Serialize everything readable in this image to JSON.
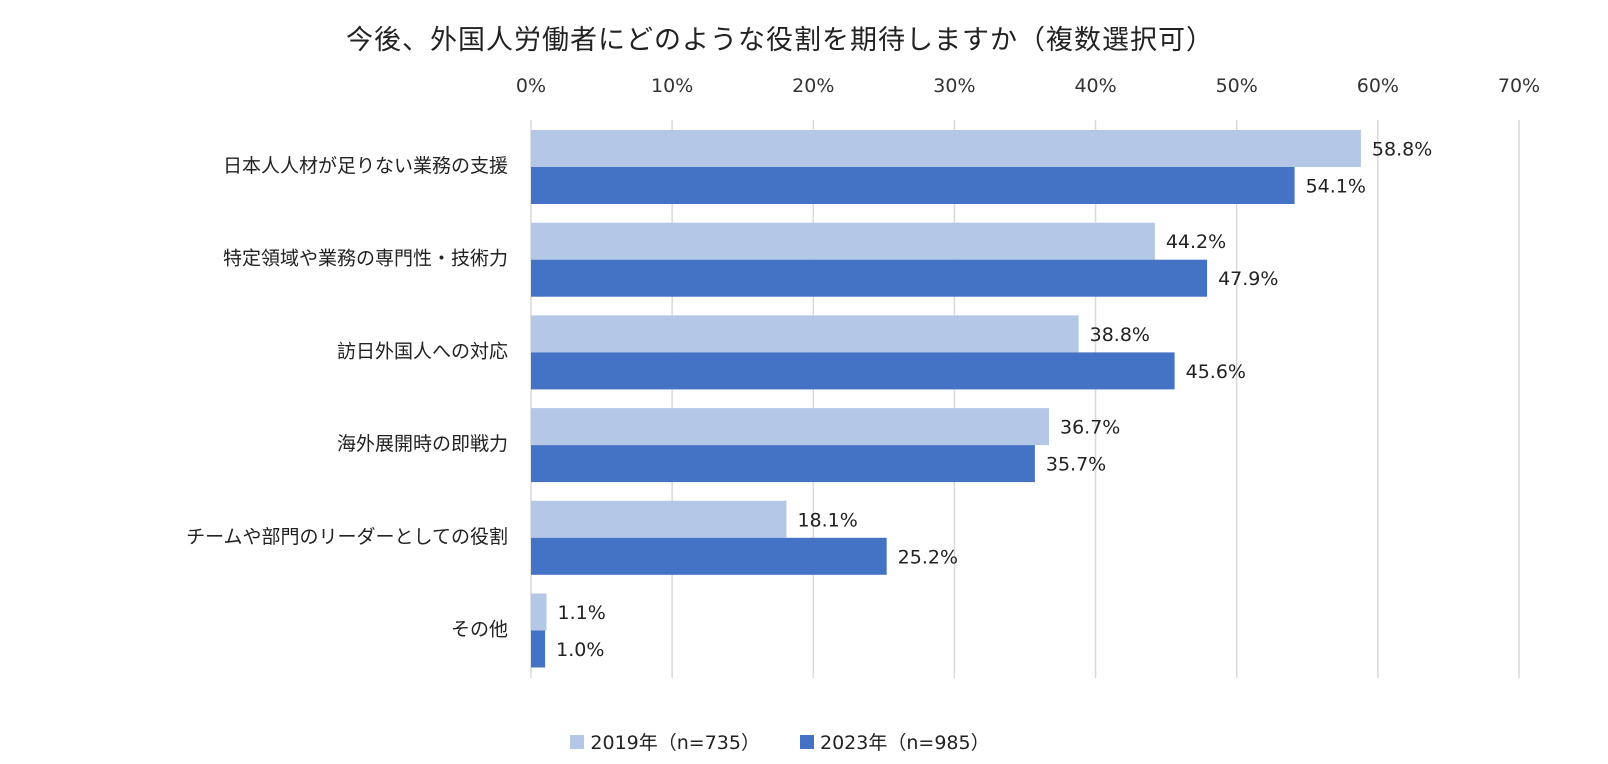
{
  "chart_data": {
    "type": "bar",
    "orientation": "horizontal",
    "title": "今後、外国人労働者にどのような役割を期待しますか（複数選択可）",
    "categories": [
      "日本人人材が足りない業務の支援",
      "特定領域や業務の専門性・技術力",
      "訪日外国人への対応",
      "海外展開時の即戦力",
      "チームや部門のリーダーとしての役割",
      "その他"
    ],
    "series": [
      {
        "name": "2019年（n=735）",
        "color": "#b4c7e7",
        "values": [
          58.8,
          44.2,
          38.8,
          36.7,
          18.1,
          1.1
        ],
        "labels": [
          "58.8%",
          "44.2%",
          "38.8%",
          "36.7%",
          "18.1%",
          "1.1%"
        ]
      },
      {
        "name": "2023年（n=985）",
        "color": "#4472c4",
        "values": [
          54.1,
          47.9,
          45.6,
          35.7,
          25.2,
          1.0
        ],
        "labels": [
          "54.1%",
          "47.9%",
          "45.6%",
          "35.7%",
          "25.2%",
          "1.0%"
        ]
      }
    ],
    "xlim": [
      0,
      70
    ],
    "xticks": [
      0,
      10,
      20,
      30,
      40,
      50,
      60,
      70
    ],
    "xtick_labels": [
      "0%",
      "10%",
      "20%",
      "30%",
      "40%",
      "50%",
      "60%",
      "70%"
    ],
    "axis_position": "top",
    "grid": true,
    "legend_position": "bottom"
  }
}
